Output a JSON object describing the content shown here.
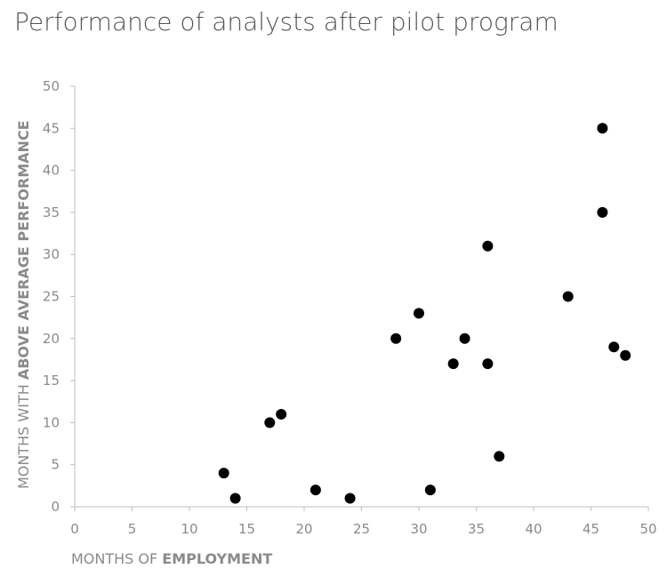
{
  "chart_data": {
    "type": "scatter",
    "title": "Performance of analysts after pilot program",
    "xlabel": {
      "normal": "MONTHS OF ",
      "bold": "EMPLOYMENT"
    },
    "ylabel": {
      "normal": "MONTHS WITH ",
      "bold": "ABOVE AVERAGE PERFORMANCE"
    },
    "xlim": [
      0,
      50
    ],
    "ylim": [
      0,
      50
    ],
    "xticks": [
      0,
      5,
      10,
      15,
      20,
      25,
      30,
      35,
      40,
      45,
      50
    ],
    "yticks": [
      0,
      5,
      10,
      15,
      20,
      25,
      30,
      35,
      40,
      45,
      50
    ],
    "grid": false,
    "colors": {
      "point": "#000000",
      "axis": "#bfbfbf",
      "text": "#8a8a8a",
      "title": "#555555"
    },
    "points": [
      {
        "x": 13,
        "y": 4
      },
      {
        "x": 14,
        "y": 1
      },
      {
        "x": 17,
        "y": 10
      },
      {
        "x": 18,
        "y": 11
      },
      {
        "x": 21,
        "y": 2
      },
      {
        "x": 24,
        "y": 1
      },
      {
        "x": 28,
        "y": 20
      },
      {
        "x": 30,
        "y": 23
      },
      {
        "x": 31,
        "y": 2
      },
      {
        "x": 33,
        "y": 17
      },
      {
        "x": 34,
        "y": 20
      },
      {
        "x": 36,
        "y": 31
      },
      {
        "x": 36,
        "y": 17
      },
      {
        "x": 37,
        "y": 6
      },
      {
        "x": 43,
        "y": 25
      },
      {
        "x": 46,
        "y": 45
      },
      {
        "x": 46,
        "y": 35
      },
      {
        "x": 47,
        "y": 19
      },
      {
        "x": 48,
        "y": 18
      }
    ]
  }
}
